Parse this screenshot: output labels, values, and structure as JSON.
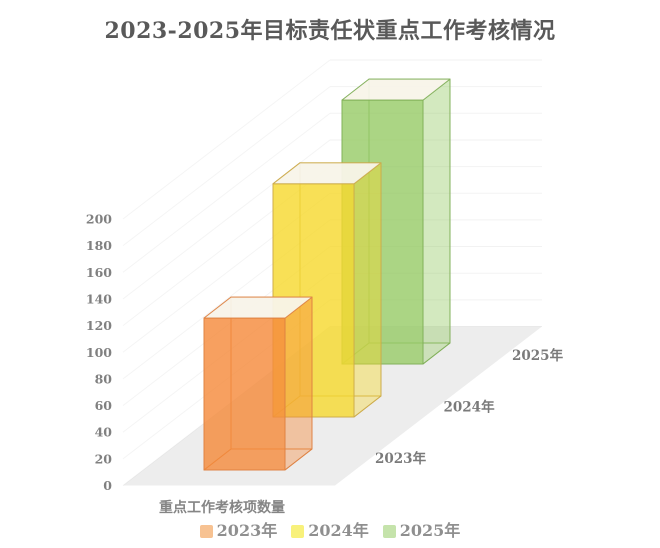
{
  "title": "2023-2025年目标责任状重点工作考核情况",
  "chart_data": {
    "type": "bar",
    "projection": "3d",
    "categories": [
      "重点工作考核项数量"
    ],
    "series": [
      {
        "name": "2023年",
        "values": [
          114
        ],
        "color": "#F58A3B",
        "edge_color": "#DD8142",
        "legend_swatch": "#F7C292"
      },
      {
        "name": "2024年",
        "values": [
          175
        ],
        "color": "#F6D92E",
        "edge_color": "#CBA94A",
        "legend_swatch": "#F8F17B"
      },
      {
        "name": "2025年",
        "values": [
          198
        ],
        "color": "#97CB67",
        "edge_color": "#7FAE57",
        "legend_swatch": "#C5E3AB"
      }
    ],
    "xlabel": "重点工作考核项数量",
    "ylabel": "",
    "ylim": [
      0,
      200
    ],
    "yticks": [
      "0",
      "20",
      "40",
      "60",
      "80",
      "100",
      "120",
      "140",
      "160",
      "180",
      "200"
    ],
    "ytick_step": 20,
    "grid": true,
    "legend_position": "bottom",
    "floor_color": "#EDEDED",
    "top_face_color": "#F8F4EA",
    "title_color": "#595959",
    "axis_text_color": "#808080"
  }
}
